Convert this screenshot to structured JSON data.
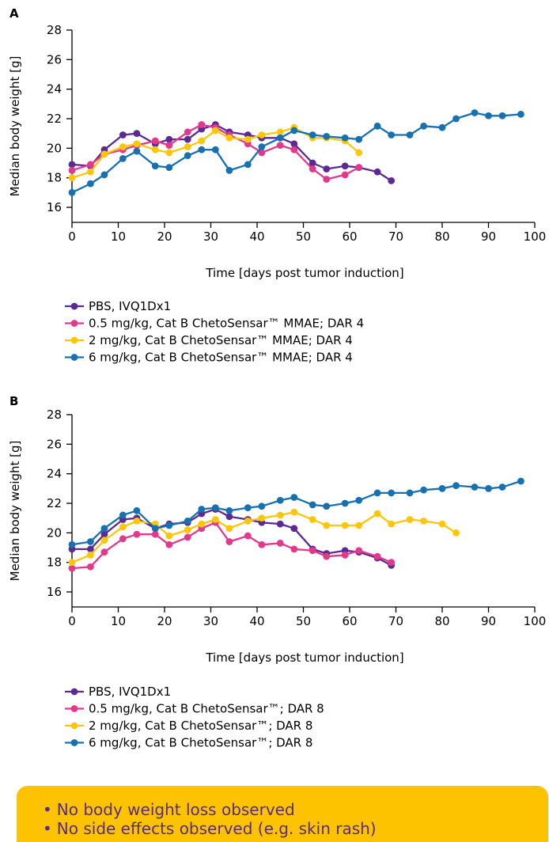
{
  "colors": {
    "purple": "#5b2a92",
    "pink": "#e3388b",
    "yellow": "#fdc60b",
    "blue": "#1771b0",
    "callout_bg": "#fdc300",
    "callout_text": "#5a2a8a"
  },
  "chart_data": [
    {
      "panel": "A",
      "type": "line",
      "xlabel": "Time [days post tumor induction]",
      "ylabel": "Median body weight [g]",
      "xlim": [
        0,
        100
      ],
      "ylim": [
        15,
        28
      ],
      "xticks": [
        0,
        10,
        20,
        30,
        40,
        50,
        60,
        70,
        80,
        90,
        100
      ],
      "yticks": [
        16,
        18,
        20,
        22,
        24,
        26,
        28
      ],
      "grid": false,
      "legend_position": "bottom",
      "series": [
        {
          "name": "PBS, IVQ1Dx1",
          "color": "#5b2a92",
          "x": [
            0,
            4,
            7,
            11,
            14,
            18,
            21,
            25,
            28,
            31,
            34,
            38,
            41,
            45,
            48,
            52,
            55,
            59,
            62,
            66,
            69
          ],
          "y": [
            18.9,
            18.8,
            19.9,
            20.9,
            21.0,
            20.3,
            20.6,
            20.6,
            21.3,
            21.6,
            21.1,
            20.9,
            20.7,
            20.7,
            20.3,
            19.0,
            18.6,
            18.8,
            18.7,
            18.4,
            17.8
          ]
        },
        {
          "name": "0.5 mg/kg, Cat B ChetoSensar™ MMAE; DAR 4",
          "color": "#e3388b",
          "x": [
            0,
            4,
            7,
            11,
            14,
            18,
            21,
            25,
            28,
            31,
            34,
            38,
            41,
            45,
            48,
            52,
            55,
            59,
            62
          ],
          "y": [
            18.5,
            18.9,
            19.6,
            19.9,
            20.2,
            20.5,
            20.2,
            21.1,
            21.6,
            21.4,
            20.9,
            20.3,
            19.7,
            20.2,
            19.9,
            18.6,
            17.9,
            18.2,
            18.7
          ]
        },
        {
          "name": "2 mg/kg, Cat B ChetoSensar™ MMAE; DAR 4",
          "color": "#fdc60b",
          "x": [
            0,
            4,
            7,
            11,
            14,
            18,
            21,
            25,
            28,
            31,
            34,
            38,
            41,
            45,
            48,
            52,
            55,
            59,
            62
          ],
          "y": [
            18.0,
            18.4,
            19.6,
            20.1,
            20.3,
            19.9,
            19.7,
            20.1,
            20.5,
            21.2,
            20.7,
            20.6,
            20.9,
            21.1,
            21.4,
            20.7,
            20.7,
            20.5,
            19.7
          ]
        },
        {
          "name": "6 mg/kg, Cat B ChetoSensar™ MMAE; DAR 4",
          "color": "#1771b0",
          "x": [
            0,
            4,
            7,
            11,
            14,
            18,
            21,
            25,
            28,
            31,
            34,
            38,
            41,
            45,
            48,
            52,
            55,
            59,
            62,
            66,
            69,
            73,
            76,
            80,
            83,
            87,
            90,
            93,
            97
          ],
          "y": [
            17.0,
            17.6,
            18.2,
            19.3,
            19.8,
            18.8,
            18.7,
            19.5,
            19.9,
            19.9,
            18.5,
            18.9,
            20.1,
            20.7,
            21.2,
            20.9,
            20.8,
            20.7,
            20.6,
            21.5,
            20.9,
            20.9,
            21.5,
            21.4,
            22.0,
            22.4,
            22.2,
            22.2,
            22.3
          ]
        }
      ]
    },
    {
      "panel": "B",
      "type": "line",
      "xlabel": "Time [days post tumor induction]",
      "ylabel": "Median body weight [g]",
      "xlim": [
        0,
        100
      ],
      "ylim": [
        15,
        28
      ],
      "xticks": [
        0,
        10,
        20,
        30,
        40,
        50,
        60,
        70,
        80,
        90,
        100
      ],
      "yticks": [
        16,
        18,
        20,
        22,
        24,
        26,
        28
      ],
      "grid": false,
      "legend_position": "bottom",
      "series": [
        {
          "name": "PBS, IVQ1Dx1",
          "color": "#5b2a92",
          "x": [
            0,
            4,
            7,
            11,
            14,
            18,
            21,
            25,
            28,
            31,
            34,
            38,
            41,
            45,
            48,
            52,
            55,
            59,
            62,
            66,
            69
          ],
          "y": [
            18.9,
            18.9,
            19.9,
            20.9,
            21.0,
            20.3,
            20.6,
            20.7,
            21.3,
            21.6,
            21.1,
            20.9,
            20.7,
            20.6,
            20.3,
            18.9,
            18.6,
            18.8,
            18.7,
            18.3,
            17.8
          ]
        },
        {
          "name": "0.5 mg/kg, Cat B ChetoSensar™; DAR 8",
          "color": "#e3388b",
          "x": [
            0,
            4,
            7,
            11,
            14,
            18,
            21,
            25,
            28,
            31,
            34,
            38,
            41,
            45,
            48,
            52,
            55,
            59,
            62,
            66,
            69
          ],
          "y": [
            17.6,
            17.7,
            18.7,
            19.6,
            19.9,
            19.9,
            19.2,
            19.7,
            20.3,
            20.7,
            19.4,
            19.8,
            19.2,
            19.3,
            18.9,
            18.8,
            18.4,
            18.5,
            18.8,
            18.4,
            18.0
          ]
        },
        {
          "name": "2 mg/kg, Cat B ChetoSensar™; DAR 8",
          "color": "#fdc60b",
          "x": [
            0,
            4,
            7,
            11,
            14,
            18,
            21,
            25,
            28,
            31,
            34,
            38,
            41,
            45,
            48,
            52,
            55,
            59,
            62,
            66,
            69,
            73,
            76,
            80,
            83
          ],
          "y": [
            18.0,
            18.5,
            19.5,
            20.4,
            20.8,
            20.6,
            19.8,
            20.2,
            20.6,
            20.9,
            20.3,
            20.8,
            21.0,
            21.2,
            21.4,
            20.9,
            20.5,
            20.5,
            20.5,
            21.3,
            20.6,
            20.9,
            20.8,
            20.6,
            20.0
          ]
        },
        {
          "name": "6 mg/kg, Cat B ChetoSensar™; DAR 8",
          "color": "#1771b0",
          "x": [
            0,
            4,
            7,
            11,
            14,
            18,
            21,
            25,
            28,
            31,
            34,
            38,
            41,
            45,
            48,
            52,
            55,
            59,
            62,
            66,
            69,
            73,
            76,
            80,
            83,
            87,
            90,
            93,
            97
          ],
          "y": [
            19.2,
            19.4,
            20.3,
            21.2,
            21.5,
            20.3,
            20.5,
            20.8,
            21.6,
            21.7,
            21.5,
            21.7,
            21.8,
            22.2,
            22.4,
            21.9,
            21.8,
            22.0,
            22.2,
            22.7,
            22.7,
            22.7,
            22.9,
            23.0,
            23.2,
            23.1,
            23.0,
            23.1,
            23.5
          ]
        }
      ]
    }
  ],
  "callout": {
    "items": [
      "No body weight loss observed",
      "No side effects observed (e.g. skin rash)"
    ]
  }
}
